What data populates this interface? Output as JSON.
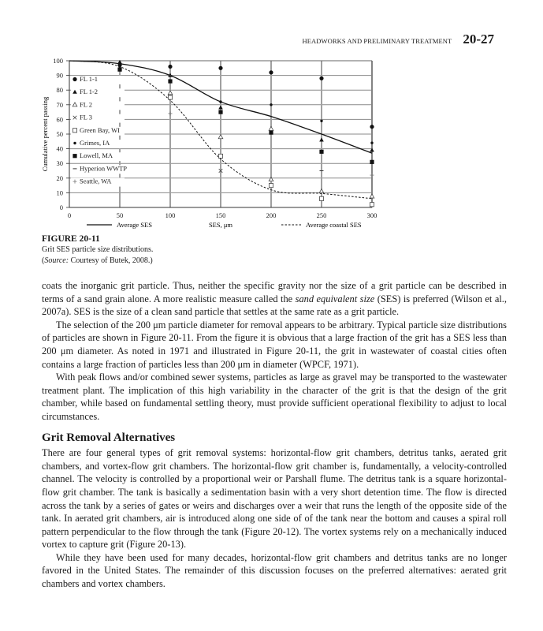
{
  "header": {
    "running_title": "HEADWORKS AND PRELIMINARY TREATMENT",
    "page_number": "20-27"
  },
  "figure": {
    "label": "FIGURE 20-11",
    "caption": "Grit SES particle size distributions.",
    "source_label": "Source:",
    "source_text": " Courtesy of Butek, 2008.)",
    "source_open": "("
  },
  "chart_data": {
    "type": "scatter",
    "xlabel": "SES, μm",
    "ylabel": "Cumulative percent passing",
    "xlim": [
      0,
      300
    ],
    "ylim": [
      0,
      100
    ],
    "x_ticks": [
      "0",
      "50",
      "100",
      "150",
      "200",
      "250",
      "300"
    ],
    "y_ticks": [
      "0",
      "10",
      "20",
      "30",
      "40",
      "50",
      "60",
      "70",
      "80",
      "90",
      "100"
    ],
    "grid": true,
    "legend_placement": "inside-left",
    "series": [
      {
        "name": "FL 1-1",
        "marker": "filled-circle-large",
        "x": [
          50,
          100,
          150,
          200,
          250,
          300
        ],
        "y": [
          97,
          96,
          95,
          92,
          88,
          55
        ]
      },
      {
        "name": "FL 1-2",
        "marker": "filled-triangle",
        "x": [
          50,
          100,
          150,
          250,
          300
        ],
        "y": [
          99,
          90,
          68,
          46,
          39
        ]
      },
      {
        "name": "FL 2",
        "marker": "open-triangle",
        "x": [
          100,
          150,
          200,
          200,
          250,
          300
        ],
        "y": [
          78,
          48,
          53.5,
          19,
          11,
          7.5
        ]
      },
      {
        "name": "FL 3",
        "marker": "x",
        "x": [
          150
        ],
        "y": [
          25
        ]
      },
      {
        "name": "Green Bay, WI",
        "marker": "open-square",
        "x": [
          100,
          150,
          200,
          250,
          300
        ],
        "y": [
          75,
          35,
          15,
          6,
          2
        ]
      },
      {
        "name": "Grimes, IA",
        "marker": "filled-circle-small",
        "x": [
          50,
          150,
          200,
          250,
          300
        ],
        "y": [
          96,
          72,
          70,
          59,
          44
        ]
      },
      {
        "name": "Lowell, MA",
        "marker": "filled-square",
        "x": [
          50,
          100,
          150,
          200,
          250,
          300
        ],
        "y": [
          94,
          86,
          65,
          51,
          38,
          31
        ]
      },
      {
        "name": "Hyperion WWTP",
        "marker": "dash",
        "x": [
          100,
          250
        ],
        "y": [
          90,
          25
        ]
      },
      {
        "name": "Seattle, WA",
        "marker": "plus",
        "x": [
          100,
          300
        ],
        "y": [
          64,
          22
        ]
      }
    ],
    "lines": [
      {
        "name": "Average SES",
        "style": "solid",
        "x": [
          0,
          50,
          100,
          150,
          200,
          250,
          300
        ],
        "y": [
          100,
          98,
          90,
          72,
          62,
          50,
          37
        ]
      },
      {
        "name": "Average coastal SES",
        "style": "dashed",
        "x": [
          0,
          50,
          100,
          150,
          200,
          250,
          300
        ],
        "y": [
          100,
          96,
          73,
          33,
          12,
          9.5,
          6
        ]
      }
    ]
  },
  "body": {
    "p1": "coats the inorganic grit particle. Thus, neither the specific gravity nor the size of a grit particle can be described in terms of a sand grain alone. A more realistic measure called the ",
    "p1_em": "sand equivalent size",
    "p1_end": " (SES) is preferred (Wilson et al., 2007a). SES is the size of a clean sand particle that settles at the same rate as a grit particle.",
    "p2": "The selection of the 200 μm particle diameter for removal appears to be arbitrary. Typical particle size distributions of particles are shown in Figure 20-11. From the figure it is obvious that a large fraction of the grit has a SES less than 200 μm diameter. As noted in 1971 and illustrated in Figure 20-11, the grit in wastewater of coastal cities often contains a large fraction of particles less than 200 μm in diameter (WPCF, 1971).",
    "p3": "With peak flows and/or combined sewer systems, particles as large as gravel may be transported to the wastewater treatment plant. The implication of this high variability in the character of the grit is that the design of the grit chamber, while based on fundamental settling theory, must provide sufficient operational flexibility to adjust to local circumstances.",
    "heading": "Grit Removal Alternatives",
    "p4": "There are four general types of grit removal systems: horizontal-flow grit chambers, detritus tanks, aerated grit chambers, and vortex-flow grit chambers. The horizontal-flow grit chamber is, fundamentally, a velocity-controlled channel. The velocity is controlled by a proportional weir or Parshall flume. The detritus tank is a square horizontal-flow grit chamber. The tank is basically a sedimentation basin with a very short detention time. The flow is directed across the tank by a series of gates or weirs and discharges over a weir that runs the length of the opposite side of the tank. In aerated grit chambers, air is introduced along one side of of the tank near the bottom and causes a spiral roll pattern perpendicular to the flow through the tank (Figure 20-12). The vortex systems rely on a mechanically induced vortex to capture grit (Figure 20-13).",
    "p5": "While they have been used for many decades, horizontal-flow grit chambers and detritus tanks are no longer favored in the United States. The remainder of this discussion focuses on the preferred alternatives: aerated grit chambers and vortex chambers."
  }
}
